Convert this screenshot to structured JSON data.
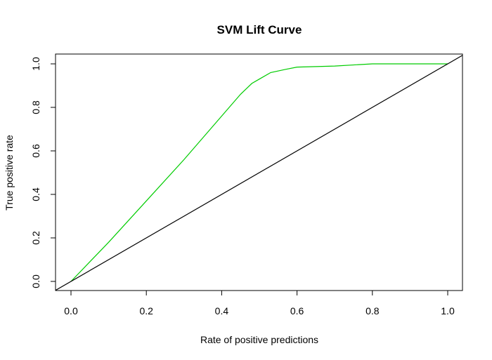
{
  "chart_data": {
    "type": "line",
    "title": "SVM Lift Curve",
    "xlabel": "Rate of positive predictions",
    "ylabel": "True positive rate",
    "xlim": [
      0,
      1
    ],
    "ylim": [
      0,
      1
    ],
    "x_ticks": [
      "0.0",
      "0.2",
      "0.4",
      "0.6",
      "0.8",
      "1.0"
    ],
    "y_ticks": [
      "0.0",
      "0.2",
      "0.4",
      "0.6",
      "0.8",
      "1.0"
    ],
    "grid": false,
    "legend": "none",
    "series": [
      {
        "color": "#00cc00",
        "x": [
          0.0,
          0.05,
          0.1,
          0.2,
          0.3,
          0.4,
          0.45,
          0.48,
          0.5,
          0.53,
          0.57,
          0.6,
          0.7,
          0.8,
          1.0
        ],
        "y": [
          0.0,
          0.09,
          0.18,
          0.37,
          0.56,
          0.76,
          0.86,
          0.91,
          0.93,
          0.96,
          0.975,
          0.985,
          0.99,
          1.0,
          1.0
        ]
      },
      {
        "color": "#000000",
        "x": [
          0.0,
          1.0
        ],
        "y": [
          0.0,
          1.0
        ]
      }
    ]
  }
}
